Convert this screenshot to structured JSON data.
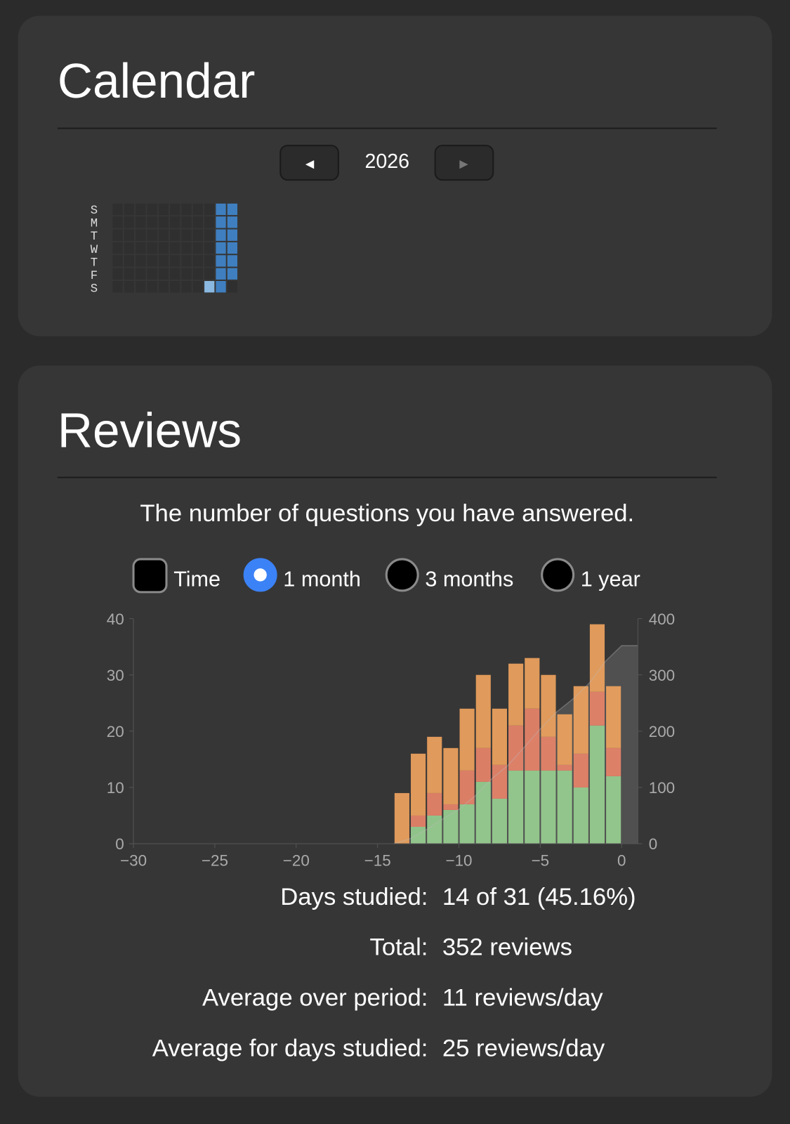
{
  "calendar": {
    "title": "Calendar",
    "prev": "◄",
    "year": "2026",
    "next": "►",
    "weekdays": [
      "S",
      "M",
      "T",
      "W",
      "T",
      "F",
      "S"
    ]
  },
  "reviews": {
    "title": "Reviews",
    "subtitle": "The number of questions you have answered.",
    "checkbox": "Time",
    "ranges": [
      "1 month",
      "3 months",
      "1 year"
    ],
    "selected_range": 0,
    "stats": [
      {
        "label": "Days studied:",
        "value": "14 of 31 (45.16%)"
      },
      {
        "label": "Total:",
        "value": "352 reviews"
      },
      {
        "label": "Average over period:",
        "value": "11 reviews/day"
      },
      {
        "label": "Average for days studied:",
        "value": "25 reviews/day"
      }
    ]
  },
  "chart_data": {
    "type": "bar",
    "stacked": true,
    "x": [
      -14,
      -13,
      -12,
      -11,
      -10,
      -9,
      -8,
      -7,
      -6,
      -5,
      -4,
      -3,
      -2,
      -1
    ],
    "series": [
      {
        "color": "#98cf90",
        "values": [
          0,
          3,
          5,
          6,
          7,
          11,
          8,
          13,
          13,
          13,
          13,
          10,
          21,
          12
        ]
      },
      {
        "color": "#e9846a",
        "values": [
          0,
          2,
          4,
          1,
          6,
          6,
          6,
          8,
          11,
          6,
          1,
          6,
          6,
          5
        ]
      },
      {
        "color": "#efa35e",
        "values": [
          9,
          11,
          10,
          10,
          11,
          13,
          10,
          11,
          9,
          11,
          9,
          12,
          12,
          11
        ]
      }
    ],
    "cumulative": true,
    "cumulative_color": "#6a6a6a",
    "xlim": [
      -30,
      1
    ],
    "xticks": [
      {
        "value": -30,
        "label": "−30"
      },
      {
        "value": -25,
        "label": "−25"
      },
      {
        "value": -20,
        "label": "−20"
      },
      {
        "value": -15,
        "label": "−15"
      },
      {
        "value": -10,
        "label": "−10"
      },
      {
        "value": -5,
        "label": "−5"
      },
      0
    ],
    "ylim": [
      0,
      40
    ],
    "yticks": [
      0,
      10,
      20,
      30,
      40
    ],
    "y2lim": [
      0,
      400
    ],
    "y2ticks": [
      0,
      100,
      200,
      300,
      400
    ]
  }
}
